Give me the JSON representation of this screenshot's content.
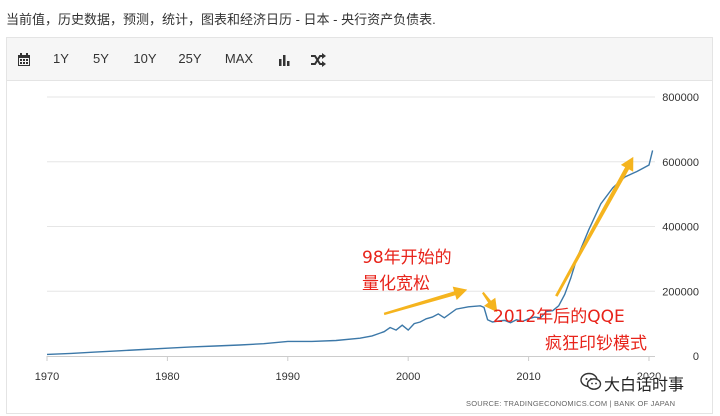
{
  "header": {
    "title": "当前值，历史数据，预测，统计，图表和经济日历 - 日本 - 央行资产负债表."
  },
  "toolbar": {
    "calendar_icon": "calendar-icon",
    "ranges": [
      "1Y",
      "5Y",
      "10Y",
      "25Y",
      "MAX"
    ],
    "chart_type_icon": "bar-chart-icon",
    "shuffle_icon": "shuffle-icon"
  },
  "chart_data": {
    "type": "line",
    "title": "",
    "xlabel": "",
    "ylabel": "",
    "xlim": [
      1970,
      2020.5
    ],
    "ylim": [
      0,
      800000
    ],
    "x_ticks": [
      "1970",
      "1980",
      "1990",
      "2000",
      "2010",
      "2020"
    ],
    "y_ticks": [
      "0",
      "200000",
      "400000",
      "600000",
      "800000"
    ],
    "y_axis_side": "right",
    "grid": "horizontal",
    "line_color": "#3c78a8",
    "annotation_color": "#f5b41e",
    "series": [
      {
        "x": [
          1970,
          1972,
          1974,
          1976,
          1978,
          1980,
          1982,
          1984,
          1986,
          1988,
          1990,
          1992,
          1994,
          1996,
          1997,
          1998,
          1998.5,
          1999,
          1999.5,
          2000,
          2000.5,
          2001,
          2001.5,
          2002,
          2002.5,
          2003,
          2004,
          2005,
          2006,
          2006.3,
          2006.6,
          2007,
          2007.5,
          2008,
          2008.5,
          2009,
          2009.5,
          2010,
          2010.5,
          2011,
          2011.5,
          2012,
          2012.5,
          2013,
          2013.5,
          2014,
          2015,
          2016,
          2017,
          2018,
          2019,
          2019.5,
          2020,
          2020.3
        ],
        "values": [
          5000,
          8000,
          12000,
          16000,
          20000,
          24000,
          28000,
          31000,
          34000,
          38000,
          45000,
          45000,
          48000,
          55000,
          62000,
          75000,
          88000,
          80000,
          95000,
          80000,
          100000,
          105000,
          115000,
          120000,
          130000,
          118000,
          145000,
          152000,
          155000,
          150000,
          112000,
          105000,
          108000,
          110000,
          103000,
          112000,
          107000,
          115000,
          120000,
          118000,
          138000,
          140000,
          155000,
          190000,
          240000,
          300000,
          390000,
          470000,
          520000,
          553000,
          570000,
          580000,
          590000,
          635000
        ]
      }
    ],
    "annotations": [
      {
        "text_lines": [
          "98年开始的",
          "量化宽松"
        ]
      },
      {
        "text_lines": [
          "2012年后的QQE",
          "疯狂印钞模式"
        ]
      }
    ]
  },
  "footer": {
    "source": "SOURCE: TRADINGECONOMICS.COM  |  BANK OF JAPAN",
    "watermark": "大白话时事",
    "watermark_icon": "wechat-icon"
  }
}
